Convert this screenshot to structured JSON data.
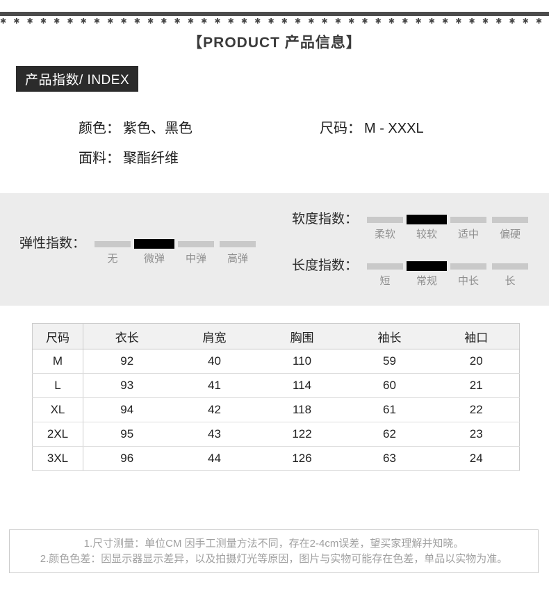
{
  "decor": {
    "star_row": "✱ ✱ ✱ ✱ ✱ ✱ ✱ ✱ ✱ ✱ ✱ ✱ ✱ ✱ ✱ ✱ ✱ ✱ ✱ ✱ ✱ ✱ ✱ ✱ ✱ ✱ ✱ ✱ ✱ ✱ ✱ ✱ ✱ ✱ ✱ ✱ ✱ ✱ ✱ ✱ ✱ ✱"
  },
  "header": {
    "title": "【PRODUCT 产品信息】",
    "index_badge": "产品指数/ INDEX"
  },
  "attributes": {
    "color": {
      "label": "颜色：",
      "value": "紫色、黑色"
    },
    "size": {
      "label": "尺码：",
      "value": "M - XXXL"
    },
    "fabric": {
      "label": "面料：",
      "value": "聚酯纤维"
    }
  },
  "indices": [
    {
      "label": "弹性指数：",
      "options": [
        "无",
        "微弹",
        "中弹",
        "高弹"
      ],
      "selected": 1
    },
    {
      "label": "软度指数：",
      "options": [
        "柔软",
        "较软",
        "适中",
        "偏硬"
      ],
      "selected": 1
    },
    {
      "label": "长度指数：",
      "options": [
        "短",
        "常规",
        "中长",
        "长"
      ],
      "selected": 1
    }
  ],
  "size_table": {
    "headers": [
      "尺码",
      "衣长",
      "肩宽",
      "胸围",
      "袖长",
      "袖口"
    ],
    "rows": [
      [
        "M",
        "92",
        "40",
        "110",
        "59",
        "20"
      ],
      [
        "L",
        "93",
        "41",
        "114",
        "60",
        "21"
      ],
      [
        "XL",
        "94",
        "42",
        "118",
        "61",
        "22"
      ],
      [
        "2XL",
        "95",
        "43",
        "122",
        "62",
        "23"
      ],
      [
        "3XL",
        "96",
        "44",
        "126",
        "63",
        "24"
      ]
    ]
  },
  "notes": [
    "1.尺寸测量：单位CM 因手工测量方法不同，存在2-4cm误差，望买家理解并知晓。",
    "2.颜色色差：因显示器显示差异，以及拍摄灯光等原因，图片与实物可能存在色差，单品以实物为准。"
  ],
  "colors": {
    "panel_bg": "#ececec",
    "bar_gray": "#c9c9c9",
    "bar_selected": "#000000",
    "badge_bg": "#2b2b2b",
    "badge_fg": "#ffffff",
    "rule_dark": "#4c4c4c",
    "header_bg": "#f1f1f1",
    "border": "#cccccc",
    "note_gray": "#a0a0a0",
    "text_muted": "#8f8f8f",
    "text_dark": "#1c1c1c"
  }
}
